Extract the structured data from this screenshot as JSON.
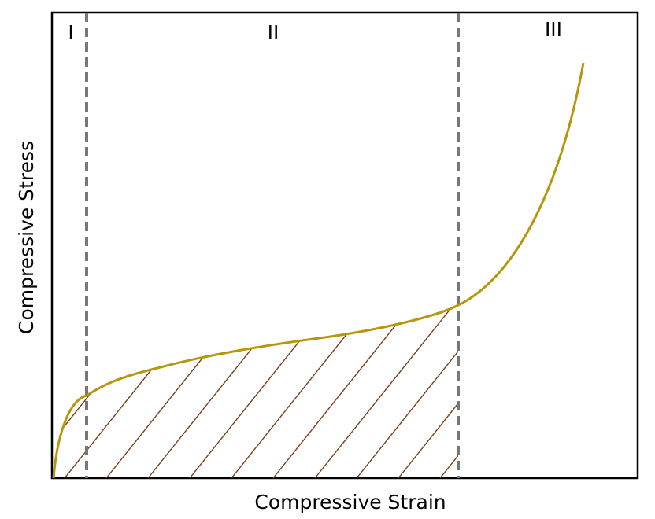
{
  "regions": [
    "I",
    "II",
    "III"
  ],
  "x_axis_label": "Compressive Strain",
  "y_axis_label": "Compressive Stress"
}
